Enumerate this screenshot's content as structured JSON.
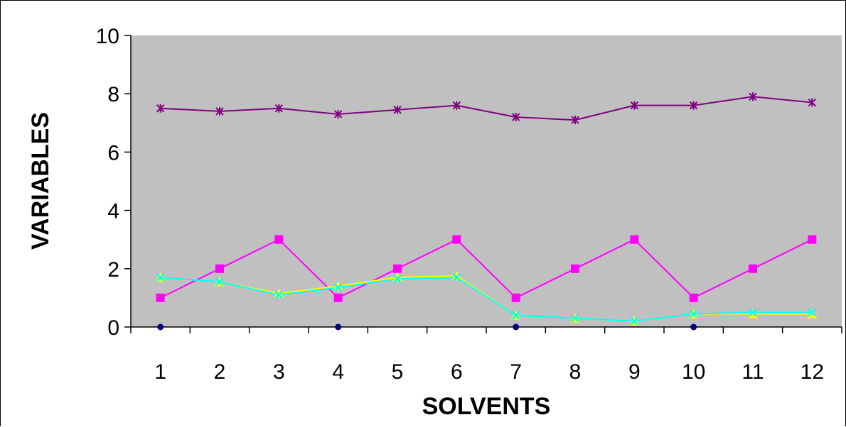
{
  "chart_data": {
    "type": "line",
    "title": "",
    "xlabel": "SOLVENTS",
    "ylabel": "VARIABLES",
    "categories": [
      "1",
      "2",
      "3",
      "4",
      "5",
      "6",
      "7",
      "8",
      "9",
      "10",
      "11",
      "12"
    ],
    "ylim": [
      0,
      10
    ],
    "yticks": [
      "0",
      "2",
      "4",
      "6",
      "8",
      "10"
    ],
    "grid": false,
    "plot_background": "#C0C0C0",
    "series": [
      {
        "values": [
          7.5,
          7.4,
          7.5,
          7.3,
          7.45,
          7.6,
          7.2,
          7.1,
          7.6,
          7.6,
          7.9,
          7.7
        ],
        "color": "#800080",
        "marker": "star"
      },
      {
        "values": [
          1,
          2,
          3,
          1,
          2,
          3,
          1,
          2,
          3,
          1,
          2,
          3
        ],
        "color": "#FF00FF",
        "marker": "square"
      },
      {
        "values": [
          1.7,
          1.55,
          1.15,
          1.4,
          1.7,
          1.75,
          0.4,
          0.3,
          0.2,
          0.45,
          0.45,
          0.45
        ],
        "color": "#FFFF00",
        "marker": "triangle"
      },
      {
        "values": [
          1.7,
          1.55,
          1.1,
          1.35,
          1.65,
          1.7,
          0.4,
          0.3,
          0.2,
          0.45,
          0.5,
          0.5
        ],
        "color": "#00FFFF",
        "marker": "x"
      },
      {
        "x": [
          "1",
          "4",
          "7",
          "10"
        ],
        "values": [
          0,
          0,
          0,
          0
        ],
        "color": "#000080",
        "marker": "circle",
        "line": false
      }
    ]
  }
}
